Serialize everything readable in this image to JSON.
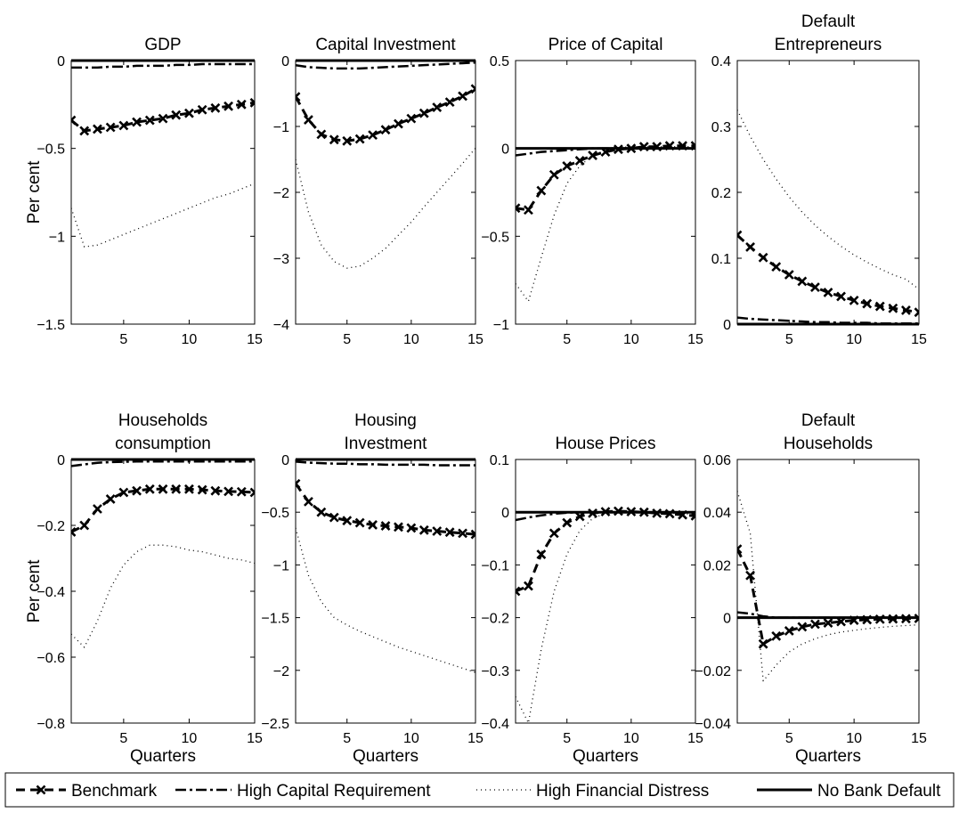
{
  "legend": {
    "items": [
      {
        "name": "Benchmark",
        "style": "benchmark"
      },
      {
        "name": "High Capital Requirement",
        "style": "dashdot"
      },
      {
        "name": "High Financial Distress",
        "style": "dotted"
      },
      {
        "name": "No Bank Default",
        "style": "solid"
      }
    ]
  },
  "chart_data": [
    {
      "type": "line",
      "title": [
        "GDP"
      ],
      "ylabel": "Per cent",
      "xlabel": "",
      "xlim": [
        1,
        15
      ],
      "ylim": [
        -1.5,
        0
      ],
      "yticks": [
        -1.5,
        -1,
        -0.5,
        0
      ],
      "ytick_labels": [
        "−1.5",
        "−1",
        "−0.5",
        "0"
      ],
      "xticks": [
        5,
        10,
        15
      ],
      "xtick_labels": [
        "5",
        "10",
        "15"
      ],
      "series": [
        {
          "name": "Benchmark",
          "style": "benchmark",
          "values": [
            -0.34,
            -0.4,
            -0.39,
            -0.38,
            -0.37,
            -0.35,
            -0.34,
            -0.33,
            -0.31,
            -0.3,
            -0.28,
            -0.27,
            -0.26,
            -0.25,
            -0.24
          ]
        },
        {
          "name": "High Capital Requirement",
          "style": "dashdot",
          "values": [
            -0.04,
            -0.04,
            -0.04,
            -0.035,
            -0.035,
            -0.03,
            -0.03,
            -0.03,
            -0.025,
            -0.025,
            -0.02,
            -0.02,
            -0.02,
            -0.02,
            -0.02
          ]
        },
        {
          "name": "High Financial Distress",
          "style": "dotted",
          "values": [
            -0.84,
            -1.06,
            -1.05,
            -1.02,
            -0.99,
            -0.96,
            -0.93,
            -0.9,
            -0.87,
            -0.84,
            -0.81,
            -0.78,
            -0.76,
            -0.73,
            -0.7
          ]
        },
        {
          "name": "No Bank Default",
          "style": "solid",
          "values": [
            0,
            0,
            0,
            0,
            0,
            0,
            0,
            0,
            0,
            0,
            0,
            0,
            0,
            0,
            0
          ]
        }
      ]
    },
    {
      "type": "line",
      "title": [
        "Capital Investment"
      ],
      "ylabel": "",
      "xlabel": "",
      "xlim": [
        1,
        15
      ],
      "ylim": [
        -4,
        0
      ],
      "yticks": [
        -4,
        -3,
        -2,
        -1,
        0
      ],
      "ytick_labels": [
        "−4",
        "−3",
        "−2",
        "−1",
        "0"
      ],
      "xticks": [
        5,
        10,
        15
      ],
      "xtick_labels": [
        "5",
        "10",
        "15"
      ],
      "series": [
        {
          "name": "Benchmark",
          "style": "benchmark",
          "values": [
            -0.55,
            -0.9,
            -1.12,
            -1.2,
            -1.22,
            -1.19,
            -1.13,
            -1.05,
            -0.96,
            -0.88,
            -0.8,
            -0.71,
            -0.63,
            -0.54,
            -0.43
          ]
        },
        {
          "name": "High Capital Requirement",
          "style": "dashdot",
          "values": [
            -0.07,
            -0.1,
            -0.11,
            -0.12,
            -0.12,
            -0.12,
            -0.11,
            -0.1,
            -0.09,
            -0.08,
            -0.07,
            -0.06,
            -0.05,
            -0.04,
            -0.03
          ]
        },
        {
          "name": "High Financial Distress",
          "style": "dotted",
          "values": [
            -1.5,
            -2.3,
            -2.8,
            -3.05,
            -3.15,
            -3.12,
            -3.0,
            -2.85,
            -2.65,
            -2.45,
            -2.22,
            -2.0,
            -1.78,
            -1.56,
            -1.33
          ]
        },
        {
          "name": "No Bank Default",
          "style": "solid",
          "values": [
            0,
            0,
            0,
            0,
            0,
            0,
            0,
            0,
            0,
            0,
            0,
            0,
            0,
            0,
            0
          ]
        }
      ]
    },
    {
      "type": "line",
      "title": [
        "Price of Capital"
      ],
      "ylabel": "",
      "xlabel": "",
      "xlim": [
        1,
        15
      ],
      "ylim": [
        -1,
        0.5
      ],
      "yticks": [
        -1,
        -0.5,
        0,
        0.5
      ],
      "ytick_labels": [
        "−1",
        "−0.5",
        "0",
        "0.5"
      ],
      "xticks": [
        5,
        10,
        15
      ],
      "xtick_labels": [
        "5",
        "10",
        "15"
      ],
      "series": [
        {
          "name": "Benchmark",
          "style": "benchmark",
          "values": [
            -0.34,
            -0.35,
            -0.24,
            -0.15,
            -0.1,
            -0.07,
            -0.04,
            -0.02,
            -0.005,
            0.0,
            0.01,
            0.01,
            0.015,
            0.015,
            0.015
          ]
        },
        {
          "name": "High Capital Requirement",
          "style": "dashdot",
          "values": [
            -0.04,
            -0.03,
            -0.02,
            -0.015,
            -0.01,
            -0.005,
            0,
            0,
            0,
            0,
            0,
            0,
            0,
            0,
            0
          ]
        },
        {
          "name": "High Financial Distress",
          "style": "dotted",
          "values": [
            -0.77,
            -0.87,
            -0.62,
            -0.38,
            -0.2,
            -0.1,
            -0.04,
            -0.01,
            0.005,
            0.01,
            0.01,
            0.01,
            0.01,
            0.01,
            0.01
          ]
        },
        {
          "name": "No Bank Default",
          "style": "solid",
          "values": [
            0,
            0,
            0,
            0,
            0,
            0,
            0,
            0,
            0,
            0,
            0,
            0,
            0,
            0,
            0
          ]
        }
      ]
    },
    {
      "type": "line",
      "title": [
        "Default",
        "Entrepreneurs"
      ],
      "ylabel": "",
      "xlabel": "",
      "xlim": [
        1,
        15
      ],
      "ylim": [
        0,
        0.4
      ],
      "yticks": [
        0,
        0.1,
        0.2,
        0.3,
        0.4
      ],
      "ytick_labels": [
        "0",
        "0.1",
        "0.2",
        "0.3",
        "0.4"
      ],
      "xticks": [
        5,
        10,
        15
      ],
      "xtick_labels": [
        "5",
        "10",
        "15"
      ],
      "series": [
        {
          "name": "Benchmark",
          "style": "benchmark",
          "values": [
            0.135,
            0.117,
            0.101,
            0.087,
            0.075,
            0.065,
            0.056,
            0.048,
            0.042,
            0.036,
            0.031,
            0.027,
            0.024,
            0.021,
            0.018
          ]
        },
        {
          "name": "High Capital Requirement",
          "style": "dashdot",
          "values": [
            0.01,
            0.008,
            0.007,
            0.006,
            0.005,
            0.004,
            0.003,
            0.003,
            0.002,
            0.002,
            0.002,
            0.001,
            0.001,
            0.001,
            0.001
          ]
        },
        {
          "name": "High Financial Distress",
          "style": "dotted",
          "values": [
            0.325,
            0.285,
            0.25,
            0.22,
            0.193,
            0.17,
            0.15,
            0.133,
            0.118,
            0.105,
            0.094,
            0.084,
            0.075,
            0.068,
            0.053
          ]
        },
        {
          "name": "No Bank Default",
          "style": "solid",
          "values": [
            0,
            0,
            0,
            0,
            0,
            0,
            0,
            0,
            0,
            0,
            0,
            0,
            0,
            0,
            0
          ]
        }
      ]
    },
    {
      "type": "line",
      "title": [
        "Households",
        "consumption"
      ],
      "ylabel": "Per cent",
      "xlabel": "Quarters",
      "xlim": [
        1,
        15
      ],
      "ylim": [
        -0.8,
        0
      ],
      "yticks": [
        -0.8,
        -0.6,
        -0.4,
        -0.2,
        0
      ],
      "ytick_labels": [
        "−0.8",
        "−0.6",
        "−0.4",
        "−0.2",
        "0"
      ],
      "xticks": [
        5,
        10,
        15
      ],
      "xtick_labels": [
        "5",
        "10",
        "15"
      ],
      "series": [
        {
          "name": "Benchmark",
          "style": "benchmark",
          "values": [
            -0.22,
            -0.2,
            -0.15,
            -0.12,
            -0.1,
            -0.095,
            -0.09,
            -0.09,
            -0.09,
            -0.09,
            -0.092,
            -0.095,
            -0.097,
            -0.098,
            -0.1
          ]
        },
        {
          "name": "High Capital Requirement",
          "style": "dashdot",
          "values": [
            -0.02,
            -0.015,
            -0.01,
            -0.008,
            -0.007,
            -0.006,
            -0.006,
            -0.006,
            -0.006,
            -0.006,
            -0.006,
            -0.006,
            -0.006,
            -0.006,
            -0.006
          ]
        },
        {
          "name": "High Financial Distress",
          "style": "dotted",
          "values": [
            -0.53,
            -0.57,
            -0.49,
            -0.39,
            -0.32,
            -0.28,
            -0.26,
            -0.26,
            -0.265,
            -0.275,
            -0.28,
            -0.29,
            -0.3,
            -0.305,
            -0.315
          ]
        },
        {
          "name": "No Bank Default",
          "style": "solid",
          "values": [
            0,
            0,
            0,
            0,
            0,
            0,
            0,
            0,
            0,
            0,
            0,
            0,
            0,
            0,
            0
          ]
        }
      ]
    },
    {
      "type": "line",
      "title": [
        "Housing",
        "Investment"
      ],
      "ylabel": "",
      "xlabel": "Quarters",
      "xlim": [
        1,
        15
      ],
      "ylim": [
        -2.5,
        0
      ],
      "yticks": [
        -2.5,
        -2,
        -1.5,
        -1,
        -0.5,
        0
      ],
      "ytick_labels": [
        "−2.5",
        "−2",
        "−1.5",
        "−1",
        "−0.5",
        "0"
      ],
      "xticks": [
        5,
        10,
        15
      ],
      "xtick_labels": [
        "5",
        "10",
        "15"
      ],
      "series": [
        {
          "name": "Benchmark",
          "style": "benchmark",
          "values": [
            -0.23,
            -0.4,
            -0.5,
            -0.55,
            -0.58,
            -0.6,
            -0.62,
            -0.63,
            -0.64,
            -0.65,
            -0.67,
            -0.68,
            -0.69,
            -0.7,
            -0.71
          ]
        },
        {
          "name": "High Capital Requirement",
          "style": "dashdot",
          "values": [
            -0.02,
            -0.03,
            -0.035,
            -0.04,
            -0.04,
            -0.045,
            -0.045,
            -0.05,
            -0.05,
            -0.05,
            -0.05,
            -0.055,
            -0.055,
            -0.055,
            -0.055
          ]
        },
        {
          "name": "High Financial Distress",
          "style": "dotted",
          "values": [
            -0.65,
            -1.1,
            -1.35,
            -1.5,
            -1.57,
            -1.63,
            -1.68,
            -1.73,
            -1.78,
            -1.82,
            -1.86,
            -1.9,
            -1.94,
            -1.98,
            -2.02
          ]
        },
        {
          "name": "No Bank Default",
          "style": "solid",
          "values": [
            0,
            0,
            0,
            0,
            0,
            0,
            0,
            0,
            0,
            0,
            0,
            0,
            0,
            0,
            0
          ]
        }
      ]
    },
    {
      "type": "line",
      "title": [
        "House Prices"
      ],
      "ylabel": "",
      "xlabel": "Quarters",
      "xlim": [
        1,
        15
      ],
      "ylim": [
        -0.4,
        0.1
      ],
      "yticks": [
        -0.4,
        -0.3,
        -0.2,
        -0.1,
        0,
        0.1
      ],
      "ytick_labels": [
        "−0.4",
        "−0.3",
        "−0.2",
        "−0.1",
        "0",
        "0.1"
      ],
      "xticks": [
        5,
        10,
        15
      ],
      "xtick_labels": [
        "5",
        "10",
        "15"
      ],
      "series": [
        {
          "name": "Benchmark",
          "style": "benchmark",
          "values": [
            -0.15,
            -0.14,
            -0.08,
            -0.04,
            -0.02,
            -0.008,
            -0.002,
            0.001,
            0.002,
            0.001,
            0.0,
            -0.002,
            -0.003,
            -0.005,
            -0.007
          ]
        },
        {
          "name": "High Capital Requirement",
          "style": "dashdot",
          "values": [
            -0.015,
            -0.01,
            -0.006,
            -0.003,
            -0.001,
            0,
            0,
            0,
            0,
            0,
            0,
            0,
            0,
            0,
            0
          ]
        },
        {
          "name": "High Financial Distress",
          "style": "dotted",
          "values": [
            -0.35,
            -0.4,
            -0.26,
            -0.15,
            -0.08,
            -0.035,
            -0.012,
            -0.002,
            0.001,
            0.001,
            0.0,
            -0.001,
            -0.002,
            -0.003,
            -0.004
          ]
        },
        {
          "name": "No Bank Default",
          "style": "solid",
          "values": [
            0,
            0,
            0,
            0,
            0,
            0,
            0,
            0,
            0,
            0,
            0,
            0,
            0,
            0,
            0
          ]
        }
      ]
    },
    {
      "type": "line",
      "title": [
        "Default",
        "Households"
      ],
      "ylabel": "",
      "xlabel": "Quarters",
      "xlim": [
        1,
        15
      ],
      "ylim": [
        -0.04,
        0.06
      ],
      "yticks": [
        -0.04,
        -0.02,
        0,
        0.02,
        0.04,
        0.06
      ],
      "ytick_labels": [
        "−0.04",
        "−0.02",
        "0",
        "0.02",
        "0.04",
        "0.06"
      ],
      "xticks": [
        5,
        10,
        15
      ],
      "xtick_labels": [
        "5",
        "10",
        "15"
      ],
      "series": [
        {
          "name": "Benchmark",
          "style": "benchmark",
          "values": [
            0.026,
            0.016,
            -0.01,
            -0.007,
            -0.005,
            -0.0035,
            -0.0025,
            -0.002,
            -0.0015,
            -0.001,
            -0.0008,
            -0.0006,
            -0.0005,
            -0.0004,
            -0.0003
          ]
        },
        {
          "name": "High Capital Requirement",
          "style": "dashdot",
          "values": [
            0.002,
            0.0015,
            0.0005,
            0,
            0,
            0,
            0,
            0,
            0,
            0,
            0,
            0,
            0,
            0,
            0
          ]
        },
        {
          "name": "High Financial Distress",
          "style": "dotted",
          "values": [
            0.048,
            0.032,
            -0.024,
            -0.018,
            -0.013,
            -0.01,
            -0.008,
            -0.0065,
            -0.0055,
            -0.0048,
            -0.0042,
            -0.0037,
            -0.0033,
            -0.003,
            -0.0027
          ]
        },
        {
          "name": "No Bank Default",
          "style": "solid",
          "values": [
            0,
            0,
            0,
            0,
            0,
            0,
            0,
            0,
            0,
            0,
            0,
            0,
            0,
            0,
            0
          ]
        }
      ]
    }
  ]
}
